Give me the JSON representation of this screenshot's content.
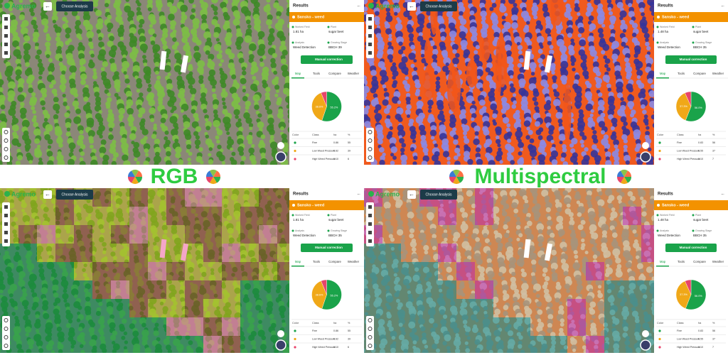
{
  "labels": [
    "RGB",
    "Multispectral"
  ],
  "panels": [
    {
      "logo": "Agremo",
      "choose": "Choose Analysis",
      "results": "Results",
      "field": "Sansko - weed",
      "meta": [
        {
          "label": "Worked Field",
          "value": "1.81 ha"
        },
        {
          "label": "Plant",
          "value": "sugar beet"
        },
        {
          "label": "Analysis",
          "value": "Weed Detection"
        },
        {
          "label": "Growing Stage",
          "value": "BBCH 39"
        }
      ],
      "button": "Manual correction",
      "tabs": [
        "Map",
        "Tools",
        "Compare",
        "Weather"
      ],
      "pie": {
        "values": [
          55.2,
          38.6,
          6.2
        ],
        "value_labels": [
          "55.2%",
          "38.6%",
          null
        ]
      },
      "table": {
        "header": [
          "Color",
          "Class",
          "ha",
          "%"
        ],
        "rows": [
          [
            "Fine",
            "0.86",
            "55"
          ],
          [
            "Low Weed Pressure",
            "0.62",
            "39"
          ],
          [
            "High Weed Pressure",
            "0.10",
            "6"
          ]
        ]
      }
    },
    {
      "logo": "Agremo",
      "choose": "Choose Analysis",
      "results": "Results",
      "field": "Sansko - weed",
      "meta": [
        {
          "label": "Worked Field",
          "value": "1.48 ha"
        },
        {
          "label": "Plant",
          "value": "sugar beet"
        },
        {
          "label": "Analysis",
          "value": "Weed Detection"
        },
        {
          "label": "Growing Stage",
          "value": "BBCH 35"
        }
      ],
      "button": "Manual correction",
      "tabs": [
        "Map",
        "Tools",
        "Compare",
        "Weather"
      ],
      "pie": {
        "values": [
          56.0,
          37.3,
          6.7
        ],
        "value_labels": [
          "56.0%",
          "37.3%",
          null
        ]
      },
      "table": {
        "header": [
          "Color",
          "Class",
          "ha",
          "%"
        ],
        "rows": [
          [
            "Fine",
            "0.83",
            "56"
          ],
          [
            "Low Weed Pressure",
            "0.55",
            "37"
          ],
          [
            "High Weed Pressure",
            "0.10",
            "7"
          ]
        ]
      }
    },
    {
      "logo": "Agremo",
      "choose": "Choose Analysis",
      "results": "Results",
      "field": "Sansko - weed",
      "meta": [
        {
          "label": "Worked Field",
          "value": "1.81 ha"
        },
        {
          "label": "Plant",
          "value": "sugar beet"
        },
        {
          "label": "Analysis",
          "value": "Weed Detection"
        },
        {
          "label": "Growing Stage",
          "value": "BBCH 35"
        }
      ],
      "button": "Manual correction",
      "tabs": [
        "Map",
        "Tools",
        "Compare",
        "Weather"
      ],
      "pie": {
        "values": [
          55.2,
          38.6,
          6.2
        ],
        "value_labels": [
          "55.2%",
          "38.6%",
          null
        ]
      },
      "table": {
        "header": [
          "Color",
          "Class",
          "ha",
          "%"
        ],
        "rows": [
          [
            "Fine",
            "0.86",
            "55"
          ],
          [
            "Low Weed Pressure",
            "0.62",
            "39"
          ],
          [
            "High Weed Pressure",
            "0.10",
            "6"
          ]
        ]
      }
    },
    {
      "logo": "Agremo",
      "choose": "Choose Analysis",
      "results": "Results",
      "field": "Sansko - weed",
      "meta": [
        {
          "label": "Worked Field",
          "value": "1.48 ha"
        },
        {
          "label": "Plant",
          "value": "sugar beet"
        },
        {
          "label": "Analysis",
          "value": "Weed Detection"
        },
        {
          "label": "Growing Stage",
          "value": "BBCH 35"
        }
      ],
      "button": "Manual correction",
      "tabs": [
        "Map",
        "Tools",
        "Compare",
        "Weather"
      ],
      "pie": {
        "values": [
          56.0,
          37.3,
          6.7
        ],
        "value_labels": [
          "56.0%",
          "37.3%",
          null
        ]
      },
      "table": {
        "header": [
          "Color",
          "Class",
          "ha",
          "%"
        ],
        "rows": [
          [
            "Fine",
            "0.83",
            "56"
          ],
          [
            "Low Weed Pressure",
            "0.55",
            "37"
          ],
          [
            "High Weed Pressure",
            "0.10",
            "7"
          ]
        ]
      }
    }
  ]
}
